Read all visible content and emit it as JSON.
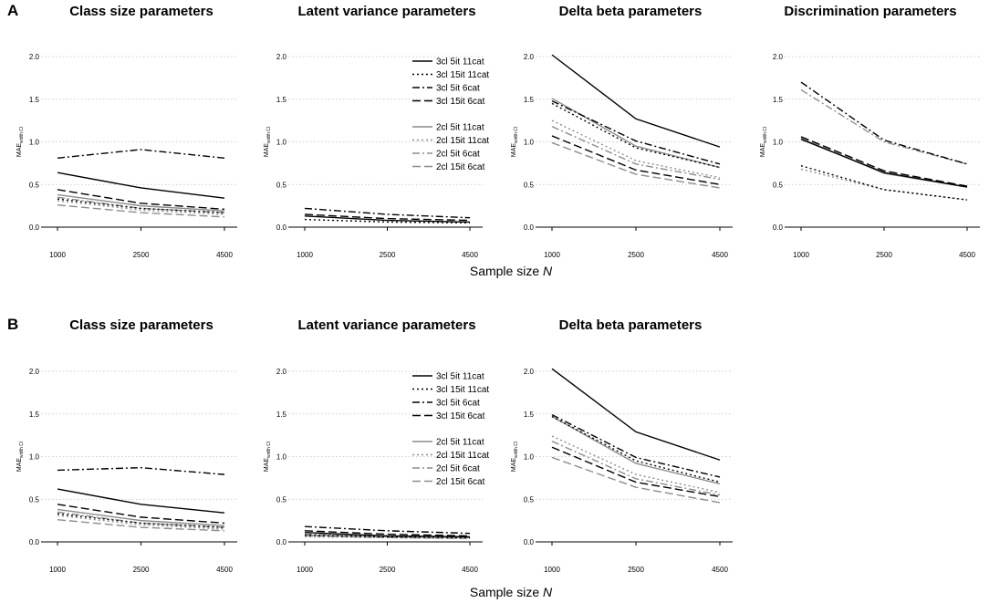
{
  "figure": {
    "xlabel_prefix": "Sample size ",
    "xlabel_var": "N",
    "ylabel": "MAE_width_CI"
  },
  "styles": [
    {
      "key": "3cl 5it 11cat",
      "color": "#000000",
      "dash": ""
    },
    {
      "key": "3cl 15it 11cat",
      "color": "#000000",
      "dash": "2,3"
    },
    {
      "key": "3cl 5it 6cat",
      "color": "#000000",
      "dash": "8,3,2,3"
    },
    {
      "key": "3cl 15it 6cat",
      "color": "#000000",
      "dash": "9,4"
    },
    {
      "key": "2cl 5it 11cat",
      "color": "#8c8c8c",
      "dash": ""
    },
    {
      "key": "2cl 15it 11cat",
      "color": "#8c8c8c",
      "dash": "2,3"
    },
    {
      "key": "2cl 5it 6cat",
      "color": "#8c8c8c",
      "dash": "8,3,2,3"
    },
    {
      "key": "2cl 15it 6cat",
      "color": "#8c8c8c",
      "dash": "9,4"
    }
  ],
  "chart_data": [
    {
      "panel": "A",
      "type": "line",
      "title": "Class size parameters",
      "x": [
        1000,
        2500,
        4500
      ],
      "ylim": [
        0,
        2
      ],
      "yticks": [
        "0.0",
        "0.5",
        "1.0",
        "1.5",
        "2.0"
      ],
      "series": [
        {
          "name": "3cl 5it 11cat",
          "values": [
            0.64,
            0.46,
            0.34
          ]
        },
        {
          "name": "3cl 15it 11cat",
          "values": [
            0.33,
            0.22,
            0.17
          ]
        },
        {
          "name": "3cl 5it 6cat",
          "values": [
            0.81,
            0.91,
            0.81
          ]
        },
        {
          "name": "3cl 15it 6cat",
          "values": [
            0.44,
            0.28,
            0.21
          ]
        },
        {
          "name": "2cl 5it 11cat",
          "values": [
            0.38,
            0.25,
            0.19
          ]
        },
        {
          "name": "2cl 15it 11cat",
          "values": [
            0.31,
            0.2,
            0.15
          ]
        },
        {
          "name": "2cl 5it 6cat",
          "values": [
            0.35,
            0.22,
            0.17
          ]
        },
        {
          "name": "2cl 15it 6cat",
          "values": [
            0.26,
            0.17,
            0.12
          ]
        }
      ]
    },
    {
      "panel": "A",
      "type": "line",
      "title": "Latent variance parameters",
      "x": [
        1000,
        2500,
        4500
      ],
      "ylim": [
        0,
        2
      ],
      "yticks": [
        "0.0",
        "0.5",
        "1.0",
        "1.5",
        "2.0"
      ],
      "legend": {
        "entries": [
          "3cl 5it 11cat",
          "3cl 15it 11cat",
          "3cl 5it 6cat",
          "3cl 15it 6cat",
          "2cl 5it 11cat",
          "2cl 15it 11cat",
          "2cl 5it 6cat",
          "2cl 15it 6cat"
        ],
        "position": "top-right"
      },
      "series": [
        {
          "name": "3cl 5it 11cat",
          "values": [
            0.13,
            0.08,
            0.06
          ]
        },
        {
          "name": "3cl 15it 11cat",
          "values": [
            0.09,
            0.06,
            0.05
          ]
        },
        {
          "name": "3cl 5it 6cat",
          "values": [
            0.22,
            0.15,
            0.11
          ]
        },
        {
          "name": "3cl 15it 6cat",
          "values": [
            0.15,
            0.1,
            0.08
          ]
        }
      ]
    },
    {
      "panel": "A",
      "type": "line",
      "title": "Delta beta parameters",
      "x": [
        1000,
        2500,
        4500
      ],
      "ylim": [
        0,
        2
      ],
      "yticks": [
        "0.0",
        "0.5",
        "1.0",
        "1.5",
        "2.0"
      ],
      "series": [
        {
          "name": "3cl 5it 11cat",
          "values": [
            2.02,
            1.27,
            0.94
          ]
        },
        {
          "name": "3cl 15it 11cat",
          "values": [
            1.45,
            0.93,
            0.7
          ]
        },
        {
          "name": "3cl 5it 6cat",
          "values": [
            1.48,
            1.01,
            0.74
          ]
        },
        {
          "name": "3cl 15it 6cat",
          "values": [
            1.07,
            0.67,
            0.5
          ]
        },
        {
          "name": "2cl 5it 11cat",
          "values": [
            1.51,
            0.95,
            0.7
          ]
        },
        {
          "name": "2cl 15it 11cat",
          "values": [
            1.25,
            0.78,
            0.58
          ]
        },
        {
          "name": "2cl 5it 6cat",
          "values": [
            1.18,
            0.74,
            0.56
          ]
        },
        {
          "name": "2cl 15it 6cat",
          "values": [
            0.99,
            0.62,
            0.46
          ]
        }
      ]
    },
    {
      "panel": "A",
      "type": "line",
      "title": "Discrimination parameters",
      "x": [
        1000,
        2500,
        4500
      ],
      "ylim": [
        0,
        2
      ],
      "yticks": [
        "0.0",
        "0.5",
        "1.0",
        "1.5",
        "2.0"
      ],
      "series": [
        {
          "name": "3cl 5it 11cat",
          "values": [
            1.03,
            0.64,
            0.47
          ]
        },
        {
          "name": "3cl 15it 11cat",
          "values": [
            0.72,
            0.44,
            0.32
          ]
        },
        {
          "name": "3cl 5it 6cat",
          "values": [
            1.7,
            1.02,
            0.74
          ]
        },
        {
          "name": "3cl 15it 6cat",
          "values": [
            1.06,
            0.66,
            0.48
          ]
        },
        {
          "name": "2cl 5it 11cat",
          "values": [
            1.04,
            0.63,
            0.47
          ]
        },
        {
          "name": "2cl 15it 11cat",
          "values": [
            0.68,
            0.44,
            0.32
          ]
        },
        {
          "name": "2cl 5it 6cat",
          "values": [
            1.61,
            1.0,
            0.74
          ]
        },
        {
          "name": "2cl 15it 6cat",
          "values": [
            1.05,
            0.66,
            0.48
          ]
        }
      ]
    },
    {
      "panel": "B",
      "type": "line",
      "title": "Class size parameters",
      "x": [
        1000,
        2500,
        4500
      ],
      "ylim": [
        0,
        2
      ],
      "yticks": [
        "0.0",
        "0.5",
        "1.0",
        "1.5",
        "2.0"
      ],
      "series": [
        {
          "name": "3cl 5it 11cat",
          "values": [
            0.62,
            0.44,
            0.34
          ]
        },
        {
          "name": "3cl 15it 11cat",
          "values": [
            0.33,
            0.22,
            0.17
          ]
        },
        {
          "name": "3cl 5it 6cat",
          "values": [
            0.84,
            0.87,
            0.79
          ]
        },
        {
          "name": "3cl 15it 6cat",
          "values": [
            0.44,
            0.29,
            0.22
          ]
        },
        {
          "name": "2cl 5it 11cat",
          "values": [
            0.38,
            0.25,
            0.19
          ]
        },
        {
          "name": "2cl 15it 11cat",
          "values": [
            0.31,
            0.2,
            0.15
          ]
        },
        {
          "name": "2cl 5it 6cat",
          "values": [
            0.35,
            0.22,
            0.17
          ]
        },
        {
          "name": "2cl 15it 6cat",
          "values": [
            0.26,
            0.17,
            0.13
          ]
        }
      ]
    },
    {
      "panel": "B",
      "type": "line",
      "title": "Latent variance parameters",
      "x": [
        1000,
        2500,
        4500
      ],
      "ylim": [
        0,
        2
      ],
      "yticks": [
        "0.0",
        "0.5",
        "1.0",
        "1.5",
        "2.0"
      ],
      "legend": {
        "entries": [
          "3cl 5it 11cat",
          "3cl 15it 11cat",
          "3cl 5it 6cat",
          "3cl 15it 6cat",
          "2cl 5it 11cat",
          "2cl 15it 11cat",
          "2cl 5it 6cat",
          "2cl 15it 6cat"
        ],
        "position": "top-right"
      },
      "series": [
        {
          "name": "3cl 5it 11cat",
          "values": [
            0.11,
            0.07,
            0.06
          ]
        },
        {
          "name": "3cl 15it 11cat",
          "values": [
            0.08,
            0.06,
            0.05
          ]
        },
        {
          "name": "3cl 5it 6cat",
          "values": [
            0.18,
            0.13,
            0.1
          ]
        },
        {
          "name": "3cl 15it 6cat",
          "values": [
            0.13,
            0.09,
            0.07
          ]
        },
        {
          "name": "2cl 5it 11cat",
          "values": [
            0.08,
            0.06,
            0.05
          ]
        },
        {
          "name": "2cl 15it 11cat",
          "values": [
            0.06,
            0.05,
            0.04
          ]
        },
        {
          "name": "2cl 5it 6cat",
          "values": [
            0.09,
            0.07,
            0.05
          ]
        },
        {
          "name": "2cl 15it 6cat",
          "values": [
            0.07,
            0.05,
            0.04
          ]
        }
      ]
    },
    {
      "panel": "B",
      "type": "line",
      "title": "Delta beta parameters",
      "x": [
        1000,
        2500,
        4500
      ],
      "ylim": [
        0,
        2
      ],
      "yticks": [
        "0.0",
        "0.5",
        "1.0",
        "1.5",
        "2.0"
      ],
      "series": [
        {
          "name": "3cl 5it 11cat",
          "values": [
            2.03,
            1.29,
            0.96
          ]
        },
        {
          "name": "3cl 15it 11cat",
          "values": [
            1.47,
            0.95,
            0.7
          ]
        },
        {
          "name": "3cl 5it 6cat",
          "values": [
            1.49,
            0.99,
            0.76
          ]
        },
        {
          "name": "3cl 15it 6cat",
          "values": [
            1.11,
            0.7,
            0.53
          ]
        },
        {
          "name": "2cl 5it 11cat",
          "values": [
            1.47,
            0.92,
            0.68
          ]
        },
        {
          "name": "2cl 15it 11cat",
          "values": [
            1.24,
            0.79,
            0.58
          ]
        },
        {
          "name": "2cl 5it 6cat",
          "values": [
            1.18,
            0.74,
            0.55
          ]
        },
        {
          "name": "2cl 15it 6cat",
          "values": [
            0.99,
            0.64,
            0.46
          ]
        }
      ]
    }
  ],
  "panel_labels": [
    "A",
    "B"
  ]
}
